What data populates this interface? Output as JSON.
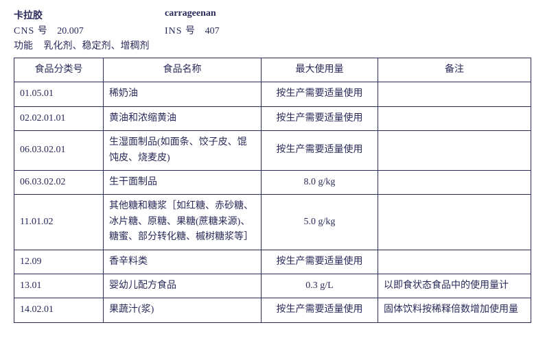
{
  "header": {
    "name_cn": "卡拉胶",
    "name_en": "carrageenan",
    "cns_label": "CNS 号",
    "cns_value": "20.007",
    "ins_label": "INS 号",
    "ins_value": "407",
    "func_label": "功能",
    "func_value": "乳化剂、稳定剂、增稠剂"
  },
  "table": {
    "columns": [
      "食品分类号",
      "食品名称",
      "最大使用量",
      "备注"
    ],
    "col_align": [
      "left",
      "left",
      "center",
      "left"
    ],
    "rows": [
      {
        "code": "01.05.01",
        "name": "稀奶油",
        "limit": "按生产需要适量使用",
        "remark": ""
      },
      {
        "code": "02.02.01.01",
        "name": "黄油和浓缩黄油",
        "limit": "按生产需要适量使用",
        "remark": ""
      },
      {
        "code": "06.03.02.01",
        "name": "生湿面制品(如面条、饺子皮、馄饨皮、烧麦皮)",
        "limit": "按生产需要适量使用",
        "remark": ""
      },
      {
        "code": "06.03.02.02",
        "name": "生干面制品",
        "limit": "8.0 g/kg",
        "remark": ""
      },
      {
        "code": "11.01.02",
        "name": "其他糖和糖浆［如红糖、赤砂糖、冰片糖、原糖、果糖(蔗糖来源)、糖蜜、部分转化糖、槭树糖浆等］",
        "limit": "5.0 g/kg",
        "remark": ""
      },
      {
        "code": "12.09",
        "name": "香辛料类",
        "limit": "按生产需要适量使用",
        "remark": ""
      },
      {
        "code": "13.01",
        "name": "婴幼儿配方食品",
        "limit": "0.3 g/L",
        "remark": "以即食状态食品中的使用量计"
      },
      {
        "code": "14.02.01",
        "name": "果蔬汁(浆)",
        "limit": "按生产需要适量使用",
        "remark": "固体饮料按稀释倍数增加使用量"
      }
    ]
  },
  "style": {
    "text_color": "#2a2a5a",
    "border_color": "#2a2a5a",
    "font_family": "SimSun",
    "base_font_size_pt": 10.5
  }
}
